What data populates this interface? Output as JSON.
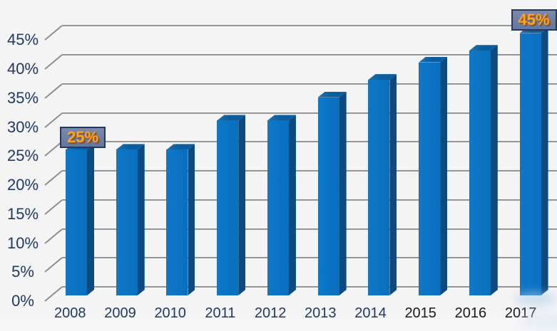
{
  "chart_data": {
    "type": "bar",
    "style": "3d-bar",
    "title": "",
    "xlabel": "",
    "ylabel": "",
    "categories": [
      "2008",
      "2009",
      "2010",
      "2011",
      "2012",
      "2013",
      "2014",
      "2015",
      "2016",
      "2017"
    ],
    "values": [
      25,
      25,
      25,
      30,
      30,
      34,
      37,
      40,
      42,
      45
    ],
    "value_unit": "%",
    "ylim": [
      0,
      45
    ],
    "y_ticks": [
      0,
      5,
      10,
      15,
      20,
      25,
      30,
      35,
      40,
      45
    ],
    "y_tick_labels": [
      "0%",
      "5%",
      "10%",
      "15%",
      "20%",
      "25%",
      "30%",
      "35%",
      "40%",
      "45%"
    ],
    "grid": true,
    "legend": false,
    "annotations": [
      {
        "label": "25%",
        "category": "2008",
        "category_index": 0
      },
      {
        "label": "45%",
        "category": "2017",
        "category_index": 9
      }
    ],
    "colors": {
      "bar_front": "#0a72c2",
      "bar_side": "#0e4a7e",
      "bar_top": "#0b5e9d",
      "gridline": "#8d8d8d",
      "axis_label": "#1f3864",
      "x_label_recent": "#1a1a1a",
      "callout_fill": "#6e7fa3",
      "callout_border": "#233760",
      "callout_text": "#ffa320",
      "background": "#f4f4f5"
    }
  }
}
